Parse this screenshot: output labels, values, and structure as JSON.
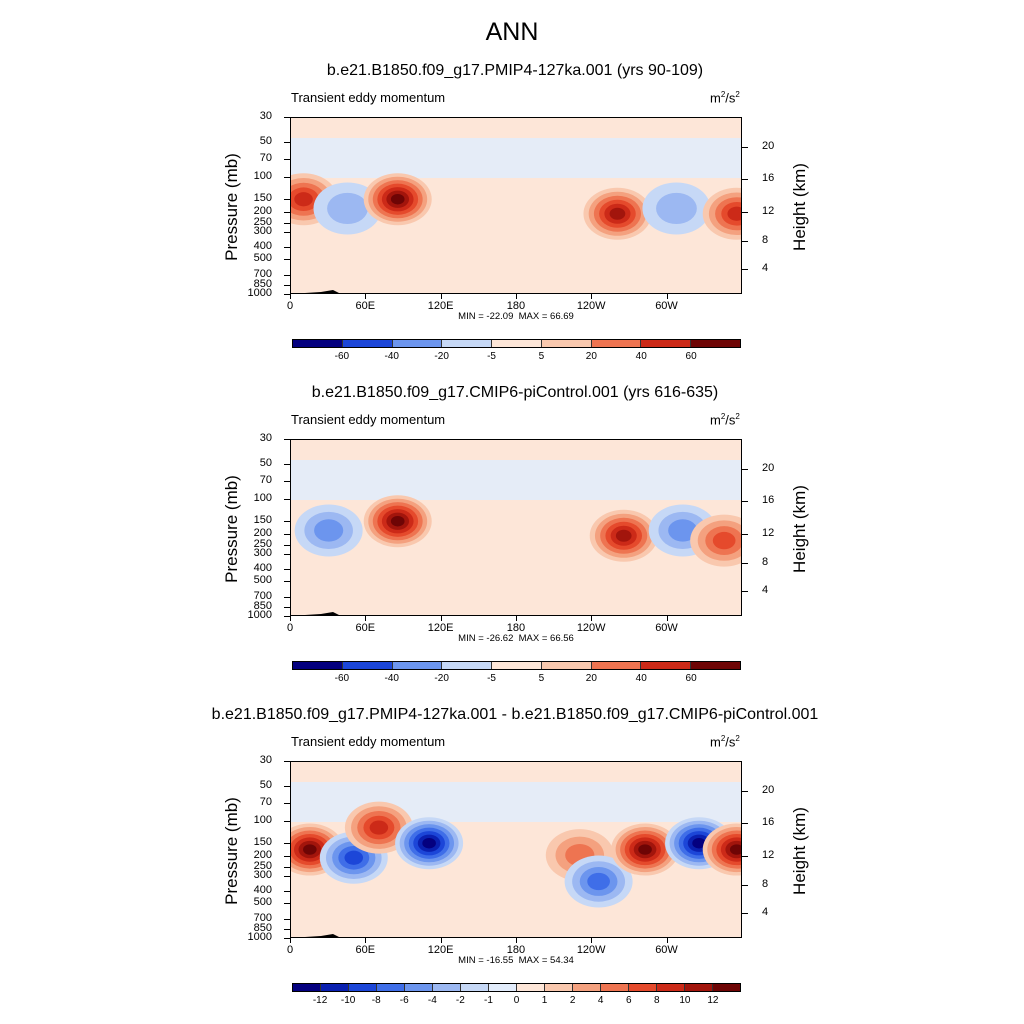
{
  "figure": {
    "title": "ANN"
  },
  "chart_data": [
    {
      "type": "heatmap",
      "title": "b.e21.B1850.f09_g17.PMIP4-127ka.001 (yrs 90-109)",
      "subtitle": "Transient eddy momentum",
      "units": "m2/s2",
      "ylabel": "Pressure (mb)",
      "y2label": "Height (km)",
      "pressure_ticks": [
        "30",
        "50",
        "70",
        "100",
        "150",
        "200",
        "250",
        "300",
        "400",
        "500",
        "700",
        "850",
        "1000"
      ],
      "height_ticks": [
        "20",
        "16",
        "12",
        "8",
        "4"
      ],
      "x_ticks": [
        "0",
        "60E",
        "120E",
        "180",
        "120W",
        "60W"
      ],
      "min_label": "MIN = -22.09",
      "max_label": "MAX =  66.69",
      "colorbar_levels": [
        "-60",
        "-40",
        "-20",
        "-5",
        "5",
        "20",
        "40",
        "60"
      ],
      "features": [
        {
          "lon": 10,
          "p": 150,
          "value": 45
        },
        {
          "lon": 45,
          "p": 180,
          "value": -15
        },
        {
          "lon": 85,
          "p": 150,
          "value": 60
        },
        {
          "lon": 260,
          "p": 200,
          "value": 55
        },
        {
          "lon": 307,
          "p": 180,
          "value": -20
        },
        {
          "lon": 355,
          "p": 200,
          "value": 40
        }
      ]
    },
    {
      "type": "heatmap",
      "title": "b.e21.B1850.f09_g17.CMIP6-piControl.001 (yrs 616-635)",
      "subtitle": "Transient eddy momentum",
      "units": "m2/s2",
      "ylabel": "Pressure (mb)",
      "y2label": "Height (km)",
      "pressure_ticks": [
        "30",
        "50",
        "70",
        "100",
        "150",
        "200",
        "250",
        "300",
        "400",
        "500",
        "700",
        "850",
        "1000"
      ],
      "height_ticks": [
        "20",
        "16",
        "12",
        "8",
        "4"
      ],
      "x_ticks": [
        "0",
        "60E",
        "120E",
        "180",
        "120W",
        "60W"
      ],
      "min_label": "MIN = -26.62",
      "max_label": "MAX =  66.56",
      "colorbar_levels": [
        "-60",
        "-40",
        "-20",
        "-5",
        "5",
        "20",
        "40",
        "60"
      ],
      "features": [
        {
          "lon": 30,
          "p": 180,
          "value": -22
        },
        {
          "lon": 85,
          "p": 150,
          "value": 60
        },
        {
          "lon": 265,
          "p": 200,
          "value": 55
        },
        {
          "lon": 312,
          "p": 180,
          "value": -25
        },
        {
          "lon": 345,
          "p": 220,
          "value": 30
        }
      ]
    },
    {
      "type": "heatmap",
      "title": "b.e21.B1850.f09_g17.PMIP4-127ka.001 - b.e21.B1850.f09_g17.CMIP6-piControl.001",
      "subtitle": "Transient eddy momentum",
      "units": "m2/s2",
      "ylabel": "Pressure (mb)",
      "y2label": "Height (km)",
      "pressure_ticks": [
        "30",
        "50",
        "70",
        "100",
        "150",
        "200",
        "250",
        "300",
        "400",
        "500",
        "700",
        "850",
        "1000"
      ],
      "height_ticks": [
        "20",
        "16",
        "12",
        "8",
        "4"
      ],
      "x_ticks": [
        "0",
        "60E",
        "120E",
        "180",
        "120W",
        "60W"
      ],
      "min_label": "MIN = -16.55",
      "max_label": "MAX =  54.34",
      "colorbar_levels": [
        "-12",
        "-10",
        "-8",
        "-6",
        "-4",
        "-2",
        "-1",
        "0",
        "1",
        "2",
        "4",
        "6",
        "8",
        "10",
        "12"
      ],
      "features": [
        {
          "lon": 15,
          "p": 170,
          "value": 14
        },
        {
          "lon": 50,
          "p": 200,
          "value": -8
        },
        {
          "lon": 70,
          "p": 110,
          "value": 8
        },
        {
          "lon": 110,
          "p": 150,
          "value": -14
        },
        {
          "lon": 230,
          "p": 190,
          "value": 5
        },
        {
          "lon": 245,
          "p": 320,
          "value": -7
        },
        {
          "lon": 282,
          "p": 170,
          "value": 14
        },
        {
          "lon": 325,
          "p": 150,
          "value": -12
        },
        {
          "lon": 355,
          "p": 170,
          "value": 14
        }
      ]
    }
  ],
  "colors": {
    "diverging": [
      "#04007f",
      "#0a20b0",
      "#1c46d8",
      "#3f6ee8",
      "#6c95ee",
      "#9cb8f2",
      "#c6d8f6",
      "#e2ecfb",
      "#fde6d8",
      "#f9c8ae",
      "#f4a17f",
      "#ee7451",
      "#e54a2c",
      "#cc2a18",
      "#a2150c",
      "#6e0505"
    ]
  }
}
